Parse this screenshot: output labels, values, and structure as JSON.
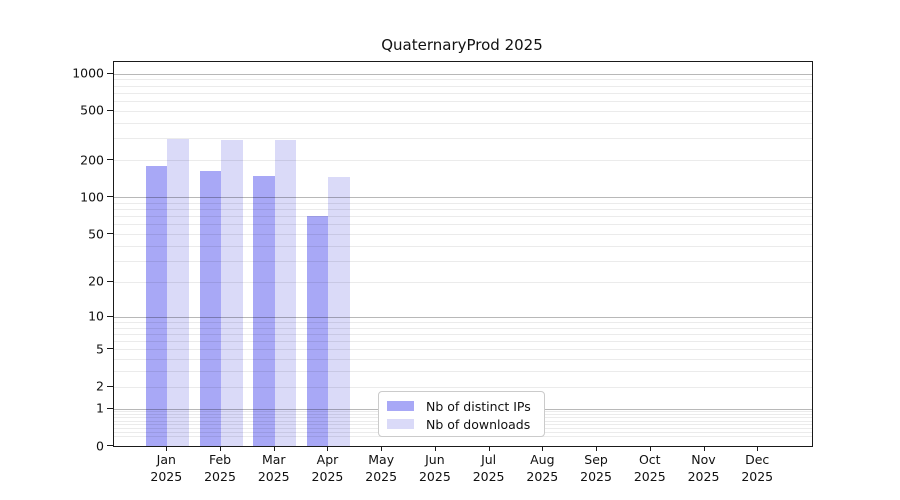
{
  "chart_data": {
    "type": "bar",
    "title": "QuaternaryProd 2025",
    "categories": [
      "Jan",
      "Feb",
      "Mar",
      "Apr",
      "May",
      "Jun",
      "Jul",
      "Aug",
      "Sep",
      "Oct",
      "Nov",
      "Dec"
    ],
    "year": "2025",
    "series": [
      {
        "name": "Nb of distinct IPs",
        "color": "#a8a8f6",
        "values": [
          180,
          165,
          150,
          70,
          0,
          0,
          0,
          0,
          0,
          0,
          0,
          0
        ]
      },
      {
        "name": "Nb of downloads",
        "color": "#dadaf8",
        "values": [
          295,
          290,
          290,
          145,
          0,
          0,
          0,
          0,
          0,
          0,
          0,
          0
        ]
      }
    ],
    "y_ticks": [
      0,
      1,
      2,
      5,
      10,
      20,
      50,
      100,
      200,
      500,
      1000
    ],
    "ylim": [
      0,
      1240
    ],
    "y_scale": "log10(1+v)",
    "xlabel": "",
    "ylabel": "",
    "grid": "horizontal",
    "legend_position": "lower-center-inside"
  }
}
